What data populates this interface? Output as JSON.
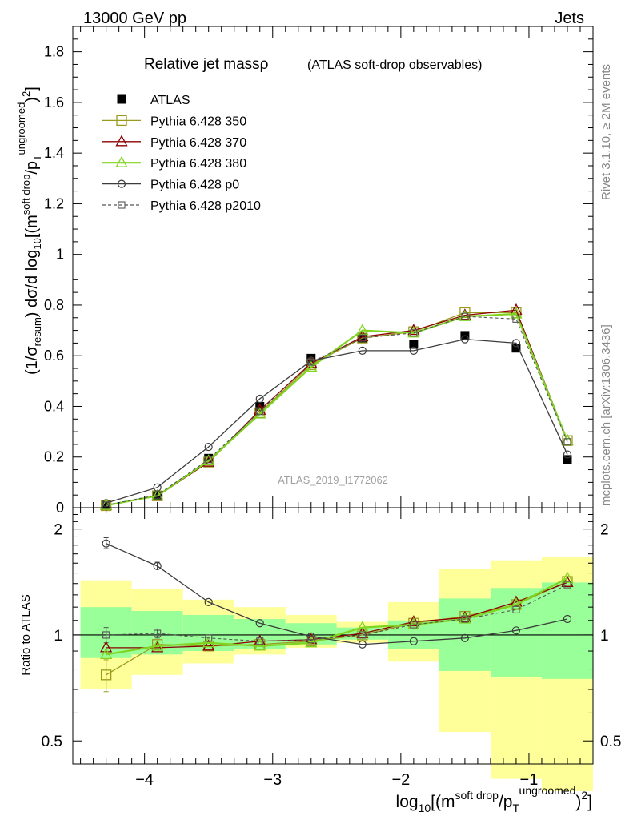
{
  "header": {
    "left": "13000 GeV pp",
    "right": "Jets"
  },
  "title": {
    "main": "Relative jet massρ",
    "sub": "(ATLAS soft-drop observables)"
  },
  "side_labels": {
    "rivet": "Rivet 3.1.10, ≥ 2M events",
    "mcplots": "mcplots.cern.ch [arXiv:1306.3436]"
  },
  "watermark": "ATLAS_2019_I1772062",
  "colors": {
    "ATLAS": "#000000",
    "350": "#9a9a1e",
    "370": "#8b0000",
    "380": "#7fd420",
    "p0": "#3c3c3c",
    "p2010": "#555555",
    "band_inner": "#99ff99",
    "band_outer": "#ffff99"
  },
  "chart_data": [
    {
      "type": "line",
      "panel": "main",
      "ylabel": "(1/σresum) dσ/d log10[(msoft drop/pTungroomed)2]",
      "ylim": [
        0,
        1.9
      ],
      "xlim": [
        -4.56,
        -0.5
      ],
      "y_ticks": [
        "0",
        "0.2",
        "0.4",
        "0.6",
        "0.8",
        "1",
        "1.2",
        "1.4",
        "1.6",
        "1.8"
      ],
      "x": [
        -4.3,
        -3.9,
        -3.5,
        -3.1,
        -2.7,
        -2.3,
        -1.9,
        -1.5,
        -1.1,
        -0.7
      ],
      "series": [
        {
          "name": "ATLAS",
          "marker": "square-filled",
          "values": [
            0.01,
            0.05,
            0.195,
            0.4,
            0.59,
            0.67,
            0.645,
            0.68,
            0.63,
            0.19
          ]
        },
        {
          "name": "Pythia 6.428 350",
          "marker": "square-open",
          "values": [
            0.008,
            0.047,
            0.18,
            0.375,
            0.565,
            0.67,
            0.695,
            0.77,
            0.77,
            0.265
          ]
        },
        {
          "name": "Pythia 6.428 370",
          "marker": "triangle-open",
          "values": [
            0.009,
            0.046,
            0.18,
            0.385,
            0.57,
            0.675,
            0.7,
            0.76,
            0.78,
            0.265
          ]
        },
        {
          "name": "Pythia 6.428 380",
          "marker": "triangle-open",
          "values": [
            0.009,
            0.047,
            0.185,
            0.37,
            0.555,
            0.7,
            0.69,
            0.755,
            0.765,
            0.265
          ]
        },
        {
          "name": "Pythia 6.428 p0",
          "marker": "circle-open",
          "values": [
            0.018,
            0.08,
            0.24,
            0.43,
            0.58,
            0.62,
            0.62,
            0.665,
            0.65,
            0.21
          ]
        },
        {
          "name": "Pythia 6.428 p2010",
          "marker": "square-open-dashed",
          "values": [
            0.01,
            0.05,
            0.19,
            0.38,
            0.575,
            0.67,
            0.69,
            0.755,
            0.745,
            0.26
          ]
        }
      ]
    },
    {
      "type": "line",
      "panel": "ratio",
      "xlabel": "log10[(msoft drop/pTungroomed)2]",
      "ylabel": "Ratio to ATLAS",
      "y_scale": "log",
      "ylim": [
        0.43,
        2.3
      ],
      "xlim": [
        -4.56,
        -0.5
      ],
      "y_ticks": [
        "0.5",
        "1",
        "2"
      ],
      "x_ticks": [
        "−4",
        "−3",
        "−2",
        "−1"
      ],
      "bin_edges": [
        -4.5,
        -4.1,
        -3.7,
        -3.3,
        -2.9,
        -2.5,
        -2.1,
        -1.7,
        -1.3,
        -0.9,
        -0.5
      ],
      "band_inner": {
        "lo": [
          0.86,
          0.88,
          0.9,
          0.91,
          0.94,
          0.97,
          0.91,
          0.79,
          0.76,
          0.75
        ],
        "hi": [
          1.2,
          1.17,
          1.14,
          1.11,
          1.08,
          1.05,
          1.1,
          1.27,
          1.36,
          1.41
        ]
      },
      "band_outer": {
        "lo": [
          0.7,
          0.77,
          0.83,
          0.88,
          0.92,
          0.95,
          0.84,
          0.53,
          0.39,
          0.36
        ]
      },
      "band_outer_hi": [
        1.43,
        1.35,
        1.26,
        1.2,
        1.14,
        1.09,
        1.24,
        1.54,
        1.63,
        1.67
      ],
      "x": [
        -4.3,
        -3.9,
        -3.5,
        -3.1,
        -2.7,
        -2.3,
        -1.9,
        -1.5,
        -1.1,
        -0.7
      ],
      "series": [
        {
          "name": "Pythia 6.428 350",
          "values": [
            0.77,
            0.94,
            0.93,
            0.94,
            0.96,
            1.0,
            1.08,
            1.13,
            1.22,
            1.42
          ]
        },
        {
          "name": "Pythia 6.428 370",
          "values": [
            0.92,
            0.92,
            0.93,
            0.96,
            0.97,
            1.01,
            1.09,
            1.12,
            1.24,
            1.41
          ]
        },
        {
          "name": "Pythia 6.428 380",
          "values": [
            0.88,
            0.93,
            0.95,
            0.93,
            0.95,
            1.05,
            1.07,
            1.11,
            1.22,
            1.45
          ]
        },
        {
          "name": "Pythia 6.428 p0",
          "values": [
            1.82,
            1.57,
            1.24,
            1.08,
            0.99,
            0.94,
            0.96,
            0.98,
            1.03,
            1.11
          ]
        },
        {
          "name": "Pythia 6.428 p2010",
          "values": [
            1.0,
            1.01,
            0.98,
            0.96,
            0.97,
            1.0,
            1.07,
            1.11,
            1.18,
            1.39
          ]
        }
      ]
    }
  ]
}
